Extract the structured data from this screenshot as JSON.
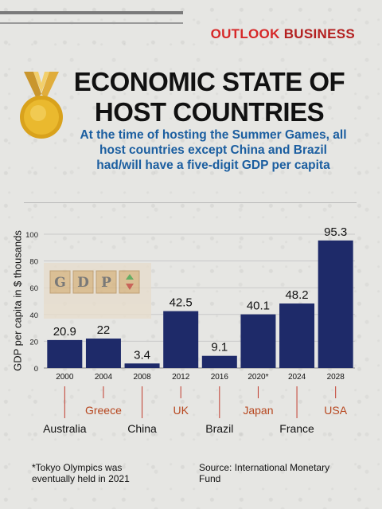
{
  "header": {
    "brand_part1": "OUTLOOK",
    "brand_part2": "BUSINESS",
    "title_line1": "ECONOMIC STATE OF",
    "title_line2": "HOST COUNTRIES",
    "subtitle": "At the time of hosting the Summer Games, all host countries except China and Brazil had/will have a five-digit GDP per capita"
  },
  "decor": {
    "gdp_blocks": [
      "G",
      "D",
      "P"
    ],
    "medal_icon": "gold-medal-icon"
  },
  "colors": {
    "bar": "#1e2a69",
    "subtitle": "#1b5ea0",
    "brand": "#d62828",
    "connector": "#c0392b",
    "country_alt": "#b7471f"
  },
  "chart_data": {
    "type": "bar",
    "categories": [
      "2000",
      "2004",
      "2008",
      "2012",
      "2016",
      "2020*",
      "2024",
      "2028"
    ],
    "values": [
      20.9,
      22,
      3.4,
      42.5,
      9.1,
      40.1,
      48.2,
      95.3
    ],
    "value_labels": [
      "20.9",
      "22",
      "3.4",
      "42.5",
      "9.1",
      "40.1",
      "48.2",
      "95.3"
    ],
    "countries": [
      "Australia",
      "Greece",
      "China",
      "UK",
      "Brazil",
      "Japan",
      "France",
      "USA"
    ],
    "ylabel": "GDP per capita in $ thousands",
    "xlabel": "",
    "ylim": [
      0,
      100
    ],
    "yticks": [
      "0",
      "20",
      "40",
      "60",
      "80",
      "100"
    ],
    "grid": true
  },
  "footer": {
    "footnote_line1": "*Tokyo Olympics was",
    "footnote_line2": "eventually held in 2021",
    "source_line1": "Source: International Monetary",
    "source_line2": "Fund"
  }
}
